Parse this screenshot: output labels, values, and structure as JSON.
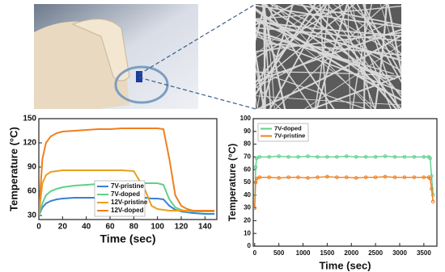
{
  "chart_data": [
    {
      "type": "line",
      "xlabel": "Time (sec)",
      "ylabel": "Temperature (°C)",
      "x": [
        0,
        3,
        6,
        10,
        15,
        20,
        30,
        40,
        50,
        60,
        70,
        80,
        90,
        95,
        100,
        105,
        110,
        115,
        120,
        125,
        130,
        140,
        148
      ],
      "series": [
        {
          "name": "7V-pristine",
          "color": "#3a7fd0",
          "values": [
            30,
            40,
            45,
            48,
            50,
            51,
            52,
            52,
            52,
            52,
            52,
            52,
            52,
            51,
            51,
            50,
            42,
            37,
            35,
            34,
            33,
            32,
            32
          ]
        },
        {
          "name": "7V-doped",
          "color": "#5fd08a",
          "values": [
            30,
            45,
            55,
            60,
            63,
            65,
            67,
            68,
            69,
            70,
            70,
            70,
            70,
            70,
            70,
            68,
            50,
            40,
            37,
            35,
            35,
            35,
            35
          ]
        },
        {
          "name": "12V-pristine",
          "color": "#e8a020",
          "values": [
            32,
            70,
            80,
            84,
            85,
            86,
            86,
            86,
            86,
            86,
            86,
            85,
            60,
            42,
            38,
            37,
            36,
            36,
            36,
            36,
            36,
            36,
            36
          ]
        },
        {
          "name": "12V-doped",
          "color": "#f07f1e",
          "values": [
            32,
            100,
            120,
            128,
            132,
            134,
            135,
            136,
            137,
            137,
            138,
            138,
            138,
            138,
            138,
            137,
            100,
            55,
            42,
            38,
            36,
            36,
            36
          ]
        }
      ],
      "xlim": [
        0,
        150
      ],
      "xticks": [
        0,
        20,
        40,
        60,
        80,
        100,
        120,
        140
      ],
      "ylim": [
        25,
        150
      ],
      "yticks": [
        30,
        60,
        90,
        120,
        150
      ],
      "legend": "lower center",
      "markers": false
    },
    {
      "type": "line",
      "xlabel": "Time (sec)",
      "ylabel": "Temperature (°C)",
      "x": [
        0,
        20,
        40,
        100,
        300,
        500,
        700,
        900,
        1100,
        1300,
        1500,
        1700,
        1900,
        2100,
        2300,
        2500,
        2700,
        2900,
        3100,
        3300,
        3500,
        3600,
        3630,
        3660,
        3690
      ],
      "series": [
        {
          "name": "7V-doped",
          "color": "#5fd08a",
          "values": [
            30,
            62,
            69,
            70,
            70,
            70.5,
            70,
            70,
            70.5,
            70,
            70,
            70,
            70.5,
            70,
            70,
            70,
            70.5,
            70,
            70,
            70,
            70,
            70,
            69,
            55,
            40
          ]
        },
        {
          "name": "7V-pristine",
          "color": "#f07f1e",
          "values": [
            30,
            50,
            53,
            54,
            54,
            53.5,
            54,
            54,
            53.5,
            54,
            54.5,
            54,
            54,
            53.5,
            54,
            54,
            54.5,
            54,
            54,
            54,
            54,
            54,
            53,
            45,
            35
          ]
        }
      ],
      "xlim": [
        -30,
        3770
      ],
      "xticks": [
        0,
        500,
        1000,
        1500,
        2000,
        2500,
        3000,
        3500
      ],
      "ylim": [
        0,
        100
      ],
      "yticks": [
        0,
        10,
        20,
        30,
        40,
        50,
        60,
        70,
        80,
        90,
        100
      ],
      "legend": "upper left",
      "markers": true
    }
  ]
}
